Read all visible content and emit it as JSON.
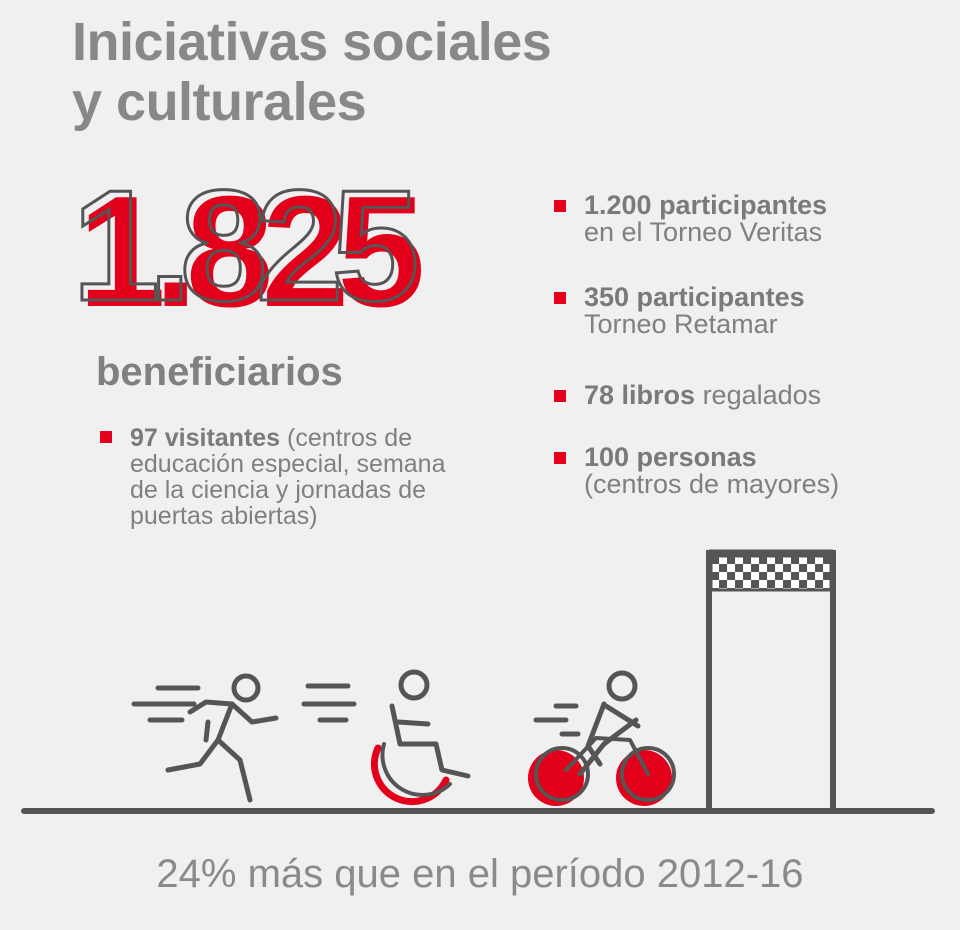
{
  "title": {
    "line1": "Iniciativas sociales",
    "line2": "y culturales"
  },
  "headline": {
    "number": "1.825",
    "label": "beneficiarios"
  },
  "left_bullet": {
    "bold": "97 visitantes",
    "lines": [
      "(centros de",
      "educación especial, semana",
      "de la ciencia y jornadas de",
      "puertas abiertas)"
    ]
  },
  "right_bullets": [
    {
      "bold": "1.200 participantes",
      "rest": "en el Torneo Veritas"
    },
    {
      "bold": "350 participantes",
      "rest": "Torneo Retamar"
    },
    {
      "bold": "78 libros",
      "rest": "regalados"
    },
    {
      "bold": "100 personas",
      "rest": "(centros de mayores)"
    }
  ],
  "footer": "24% más que en el período 2012-16",
  "colors": {
    "accent": "#e2001a",
    "line": "#555555",
    "text": "#808080"
  },
  "icons": [
    "runner-icon",
    "wheelchair-icon",
    "cyclist-icon",
    "finish-flag-icon"
  ]
}
